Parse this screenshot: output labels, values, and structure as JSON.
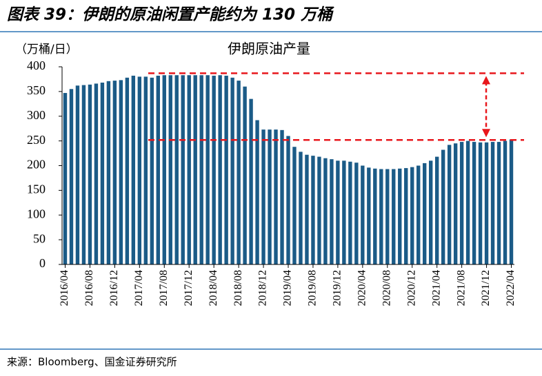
{
  "caption": "图表 39：伊朗的原油闲置产能约为 130 万桶",
  "source": "来源：Bloomberg、国金证券研究所",
  "chart_data": {
    "type": "bar",
    "title": "伊朗原油产量",
    "y_axis_label": "（万桶/日）",
    "categories": [
      "2016/04",
      null,
      null,
      null,
      "2016/08",
      null,
      null,
      null,
      "2016/12",
      null,
      null,
      null,
      "2017/04",
      null,
      null,
      null,
      "2017/08",
      null,
      null,
      null,
      "2017/12",
      null,
      null,
      null,
      "2018/04",
      null,
      null,
      null,
      "2018/08",
      null,
      null,
      null,
      "2018/12",
      null,
      null,
      null,
      "2019/04",
      null,
      null,
      null,
      "2019/08",
      null,
      null,
      null,
      "2019/12",
      null,
      null,
      null,
      "2020/04",
      null,
      null,
      null,
      "2020/08",
      null,
      null,
      null,
      "2020/12",
      null,
      null,
      null,
      "2021/04",
      null,
      null,
      null,
      "2021/08",
      null,
      null,
      null,
      "2021/12",
      null,
      null,
      null,
      "2022/04"
    ],
    "values": [
      347,
      355,
      362,
      363,
      364,
      366,
      368,
      371,
      372,
      373,
      378,
      382,
      380,
      380,
      378,
      382,
      383,
      383,
      383,
      383,
      383,
      383,
      383,
      383,
      382,
      383,
      382,
      378,
      372,
      360,
      335,
      292,
      273,
      273,
      273,
      272,
      260,
      238,
      228,
      222,
      220,
      218,
      215,
      213,
      210,
      210,
      208,
      206,
      200,
      196,
      194,
      193,
      193,
      193,
      194,
      195,
      197,
      200,
      205,
      210,
      218,
      232,
      242,
      245,
      248,
      250,
      248,
      247,
      247,
      248,
      248,
      250,
      253
    ],
    "color": "#1b5b87",
    "reference_lines": [
      387,
      252
    ],
    "reference_color": "#e8161b",
    "ylim": [
      0,
      400
    ],
    "yticks": [
      0,
      50,
      100,
      150,
      200,
      250,
      300,
      350,
      400
    ]
  }
}
